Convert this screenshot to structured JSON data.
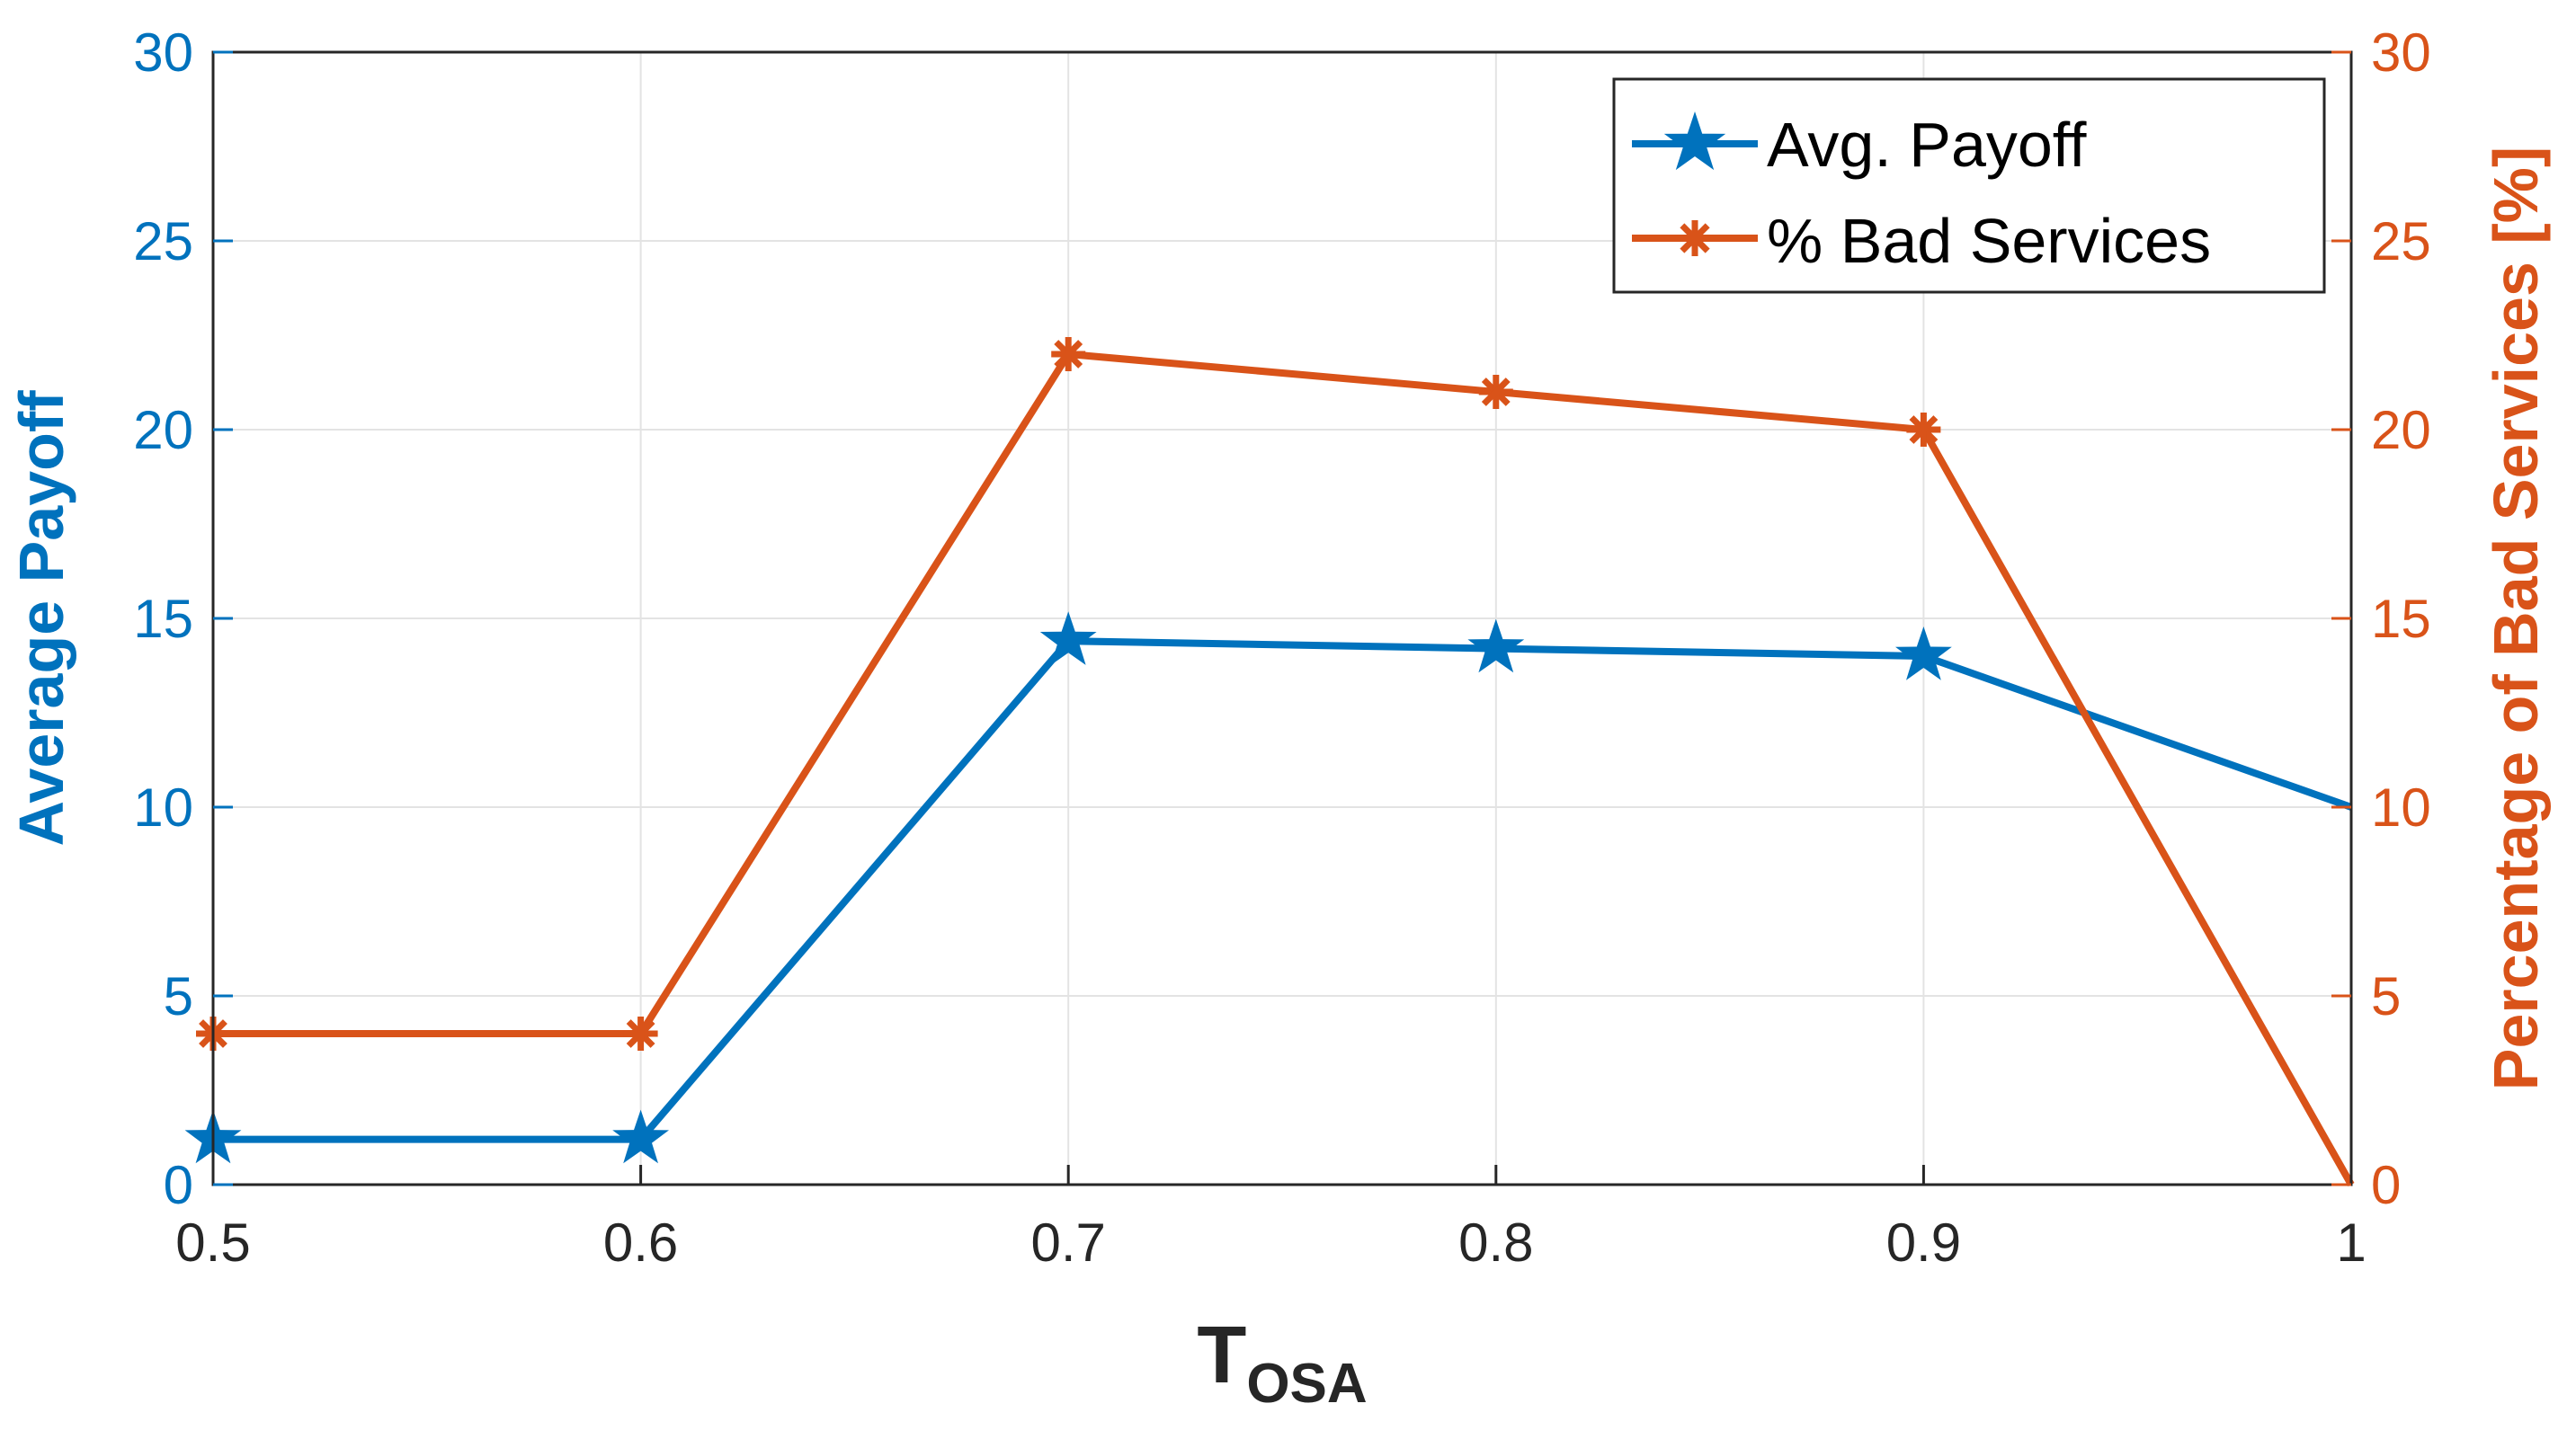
{
  "chart_data": {
    "type": "line",
    "x": [
      0.5,
      0.6,
      0.7,
      0.8,
      0.9,
      1.0
    ],
    "xlim": [
      0.5,
      1.0
    ],
    "xticks": [
      "0.5",
      "0.6",
      "0.7",
      "0.8",
      "0.9",
      "1"
    ],
    "xlabel": "T",
    "xlabel_subscript": "OSA",
    "ylabel_left": "Average Payoff",
    "ylabel_right": "Percentage of Bad Services [%]",
    "ylim_left": [
      0,
      30
    ],
    "ylim_right": [
      0,
      30
    ],
    "yticks_left": [
      "0",
      "5",
      "10",
      "15",
      "20",
      "25",
      "30"
    ],
    "yticks_right": [
      "0",
      "5",
      "10",
      "15",
      "20",
      "25",
      "30"
    ],
    "grid": true,
    "legend_position": "top-right",
    "series": [
      {
        "name": "Avg. Payoff",
        "axis": "left",
        "marker": "star",
        "color": "#0072BD",
        "values": [
          1.2,
          1.2,
          14.4,
          14.2,
          14.0,
          10.0
        ]
      },
      {
        "name": "% Bad Services",
        "axis": "right",
        "marker": "asterisk",
        "color": "#D95319",
        "values": [
          4,
          4,
          22,
          21,
          20,
          0
        ]
      }
    ]
  }
}
